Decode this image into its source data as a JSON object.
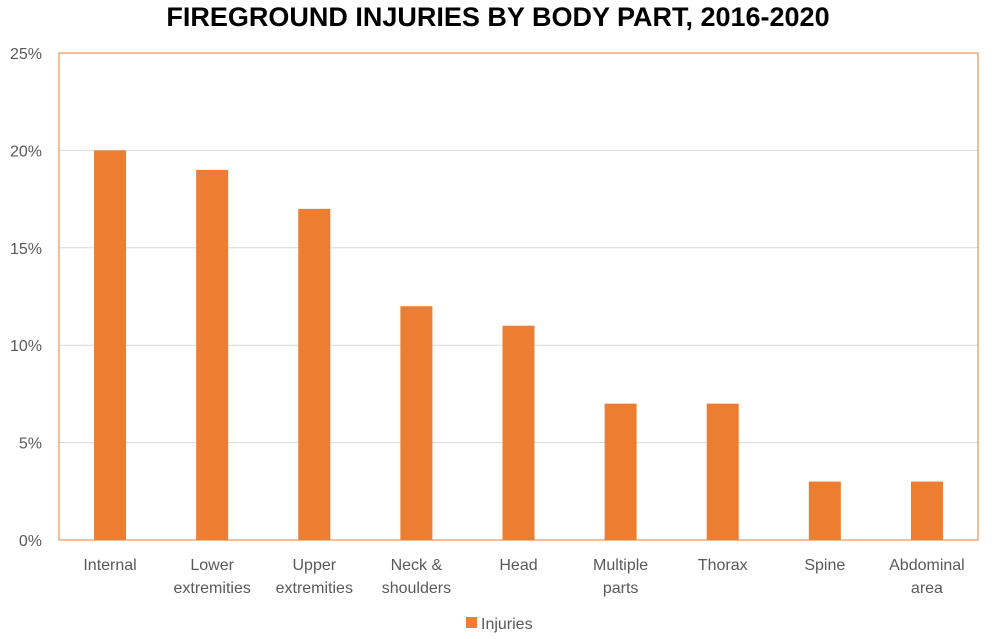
{
  "chart_data": {
    "type": "bar",
    "title": "FIREGROUND INJURIES BY BODY PART, 2016-2020",
    "categories": [
      "Internal",
      "Lower extremities",
      "Upper extremities",
      "Neck & shoulders",
      "Head",
      "Multiple parts",
      "Thorax",
      "Spine",
      "Abdominal area"
    ],
    "category_lines": [
      [
        "Internal"
      ],
      [
        "Lower",
        "extremities"
      ],
      [
        "Upper",
        "extremities"
      ],
      [
        "Neck &",
        "shoulders"
      ],
      [
        "Head"
      ],
      [
        "Multiple",
        "parts"
      ],
      [
        "Thorax"
      ],
      [
        "Spine"
      ],
      [
        "Abdominal",
        "area"
      ]
    ],
    "series": [
      {
        "name": "Injuries",
        "values": [
          20,
          19,
          17,
          12,
          11,
          7,
          7,
          3,
          3
        ]
      }
    ],
    "ylim": [
      0,
      25
    ],
    "yticks": [
      0,
      5,
      10,
      15,
      20,
      25
    ],
    "ytick_labels": [
      "0%",
      "5%",
      "10%",
      "15%",
      "20%",
      "25%"
    ],
    "grid": true,
    "legend_position": "bottom",
    "colors": {
      "bar": "#ED7D31",
      "grid": "#D9D9D9",
      "plot_border": "#ED7D31",
      "text": "#595959"
    }
  }
}
